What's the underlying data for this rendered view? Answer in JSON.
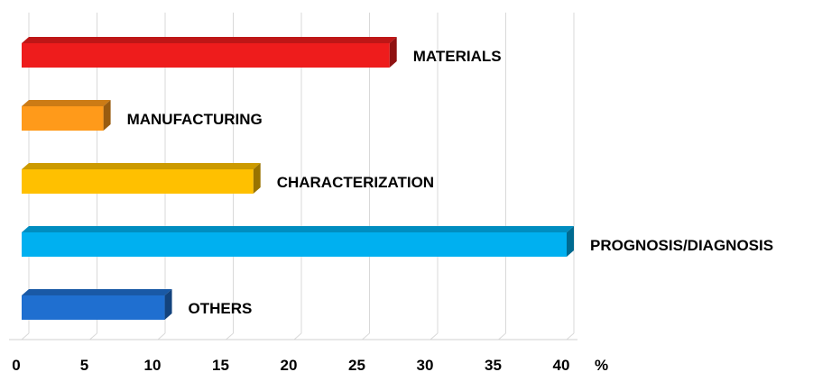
{
  "chart_data": {
    "type": "bar",
    "orientation": "horizontal",
    "style": "3d",
    "categories": [
      "MATERIALS",
      "MANUFACTURING",
      "CHARACTERIZATION",
      "PROGNOSIS/DIAGNOSIS",
      "OTHERS"
    ],
    "values": [
      27,
      6,
      17,
      40,
      10.5
    ],
    "colors": [
      "#ee1c1c",
      "#ff9a1a",
      "#ffc000",
      "#00b0f0",
      "#1f6fd0"
    ],
    "xlim": [
      0,
      40
    ],
    "x_ticks": [
      "0",
      "5",
      "10",
      "15",
      "20",
      "25",
      "30",
      "35",
      "40"
    ],
    "x_unit": "%",
    "grid": true,
    "legend": "none"
  }
}
